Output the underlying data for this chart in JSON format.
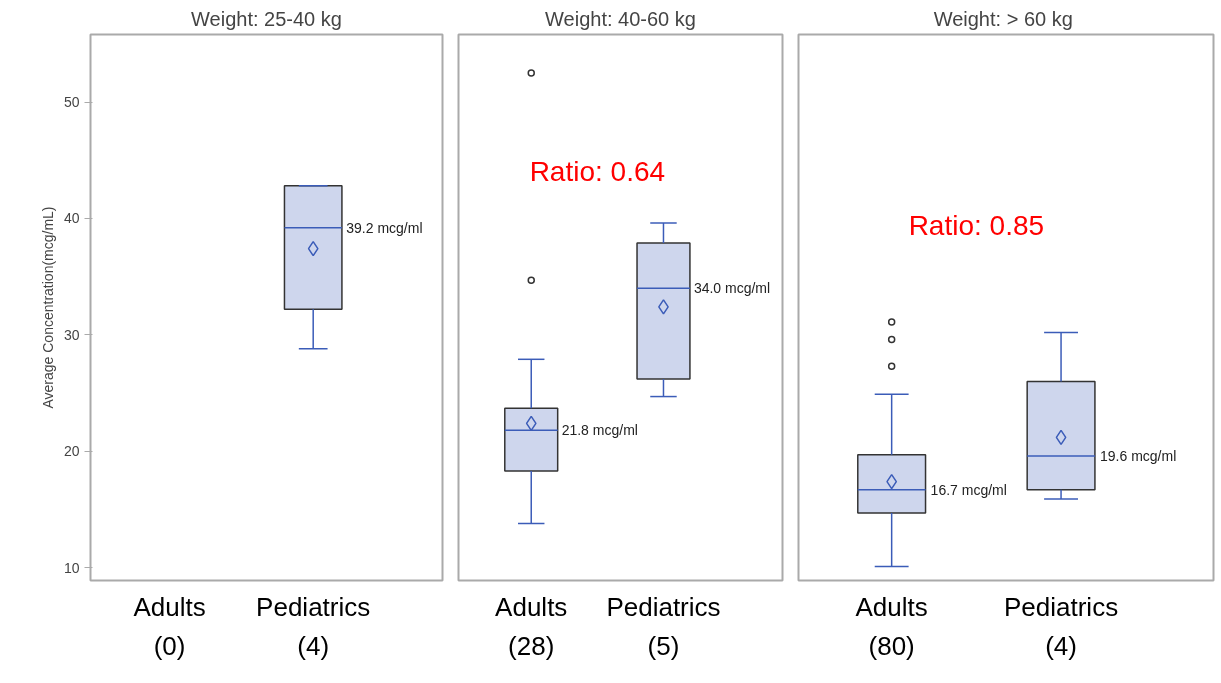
{
  "chart_data": [
    {
      "type": "box",
      "title": "Weight: 25-40 kg",
      "ylabel": "Average Concentration(mcg/mL)",
      "categories": [
        "Adults\n(0)",
        "Pediatrics\n(4)"
      ],
      "ylim": [
        8.9,
        55.8
      ],
      "yticks": [
        10,
        20,
        30,
        40,
        50
      ],
      "grid": false,
      "marker": "diamond",
      "series": [
        {
          "color": "#3b5cb8",
          "boxes": [
            null,
            {
              "low": 28.8,
              "q1": 32.2,
              "median": 39.2,
              "q3": 42.8,
              "high": 42.8,
              "mean": 37.4
            }
          ]
        }
      ],
      "annotations": [
        {
          "text": "39.2 mcg/ml",
          "x": "Pediatrics\n(4)",
          "y": 39.2
        }
      ]
    },
    {
      "type": "box",
      "title": "Weight: 40-60 kg",
      "categories": [
        "Adults\n(28)",
        "Pediatrics\n(5)"
      ],
      "ylim": [
        8.9,
        55.8
      ],
      "yticks": [
        10,
        20,
        30,
        40,
        50
      ],
      "tick_labels": "x",
      "grid": false,
      "marker": "diamond",
      "series": [
        {
          "color": "#3b5cb8",
          "boxes": [
            {
              "low": 13.8,
              "q1": 18.3,
              "median": 21.8,
              "q3": 23.7,
              "high": 27.9,
              "mean": 22.4,
              "outliers": [
                34.7,
                52.5
              ]
            },
            {
              "low": 24.7,
              "q1": 26.2,
              "median": 34.0,
              "q3": 37.9,
              "high": 39.6,
              "mean": 32.4
            }
          ]
        }
      ],
      "annotations": [
        "Ratio: 0.64",
        {
          "text": "21.8 mcg/ml",
          "x": "Adults\n(28)",
          "y": 21.8
        },
        {
          "text": "34.0 mcg/ml",
          "x": "Pediatrics\n(5)",
          "y": 34.0
        }
      ]
    },
    {
      "type": "box",
      "title": "Weight:  > 60 kg",
      "categories": [
        "Adults\n(80)",
        "Pediatrics\n(4)"
      ],
      "ylim": [
        8.9,
        55.8
      ],
      "yticks": [
        10,
        20,
        30,
        40,
        50
      ],
      "tick_labels": "x",
      "grid": false,
      "marker": "diamond",
      "series": [
        {
          "color": "#3b5cb8",
          "boxes": [
            {
              "low": 10.1,
              "q1": 14.7,
              "median": 16.7,
              "q3": 19.7,
              "high": 24.9,
              "mean": 17.4,
              "outliers": [
                27.3,
                29.6,
                31.1
              ]
            },
            {
              "low": 15.9,
              "q1": 16.7,
              "median": 19.6,
              "q3": 26.0,
              "high": 30.2,
              "mean": 21.2
            }
          ]
        }
      ],
      "annotations": [
        "Ratio: 0.85",
        {
          "text": "16.7 mcg/ml",
          "x": "Adults\n(80)",
          "y": 16.7
        },
        {
          "text": "19.6 mcg/ml",
          "x": "Pediatrics\n(4)",
          "y": 19.6
        }
      ]
    }
  ]
}
